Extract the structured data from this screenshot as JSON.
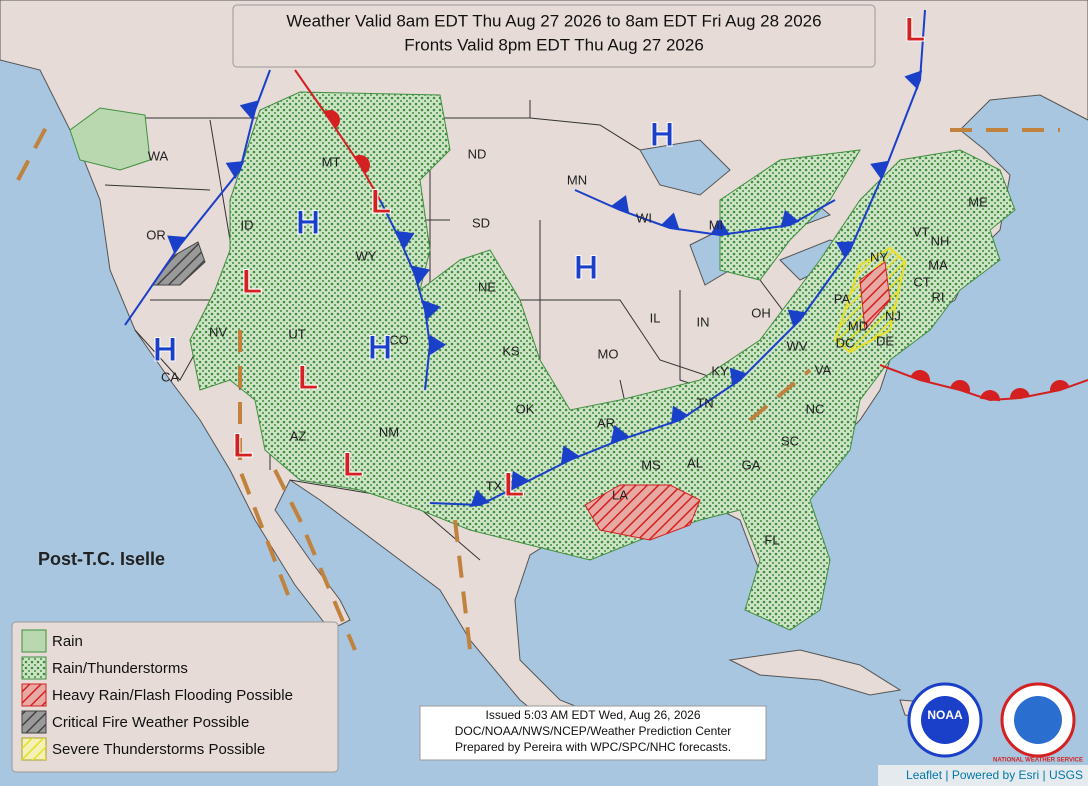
{
  "header": {
    "line1": "Weather Valid 8am EDT Thu Aug 27 2026 to 8am EDT Fri Aug 28 2026",
    "line2": "Fronts Valid 8pm EDT Thu Aug 27 2026"
  },
  "states": [
    "WA",
    "OR",
    "ID",
    "MT",
    "WY",
    "NV",
    "UT",
    "CA",
    "AZ",
    "NM",
    "CO",
    "ND",
    "SD",
    "NE",
    "KS",
    "OK",
    "TX",
    "MN",
    "WI",
    "MI",
    "IL",
    "IN",
    "MO",
    "AR",
    "LA",
    "MS",
    "AL",
    "TN",
    "KY",
    "OH",
    "WV",
    "VA",
    "NC",
    "SC",
    "GA",
    "FL",
    "PA",
    "NY",
    "VT",
    "NH",
    "ME",
    "MA",
    "CT",
    "RI",
    "NJ",
    "DE",
    "MD",
    "DC"
  ],
  "pressure_centers": {
    "highs": [
      "H",
      "H",
      "H",
      "H",
      "H"
    ],
    "lows": [
      "L",
      "L",
      "L",
      "L",
      "L",
      "L",
      "L"
    ]
  },
  "storm_label": "Post-T.C. Iselle",
  "legend": [
    "Rain",
    "Rain/Thunderstorms",
    "Heavy Rain/Flash Flooding Possible",
    "Critical Fire Weather Possible",
    "Severe Thunderstorms Possible"
  ],
  "issued": [
    "Issued  5:03 AM EDT Wed, Aug 26, 2026",
    "DOC/NOAA/NWS/NCEP/Weather Prediction Center",
    "Prepared by Pereira with WPC/SPC/NHC forecasts."
  ],
  "logos": {
    "noaa": "NOAA",
    "nws": "NATIONAL WEATHER SERVICE"
  },
  "attribution": "Leaflet | Powered by Esri | USGS"
}
